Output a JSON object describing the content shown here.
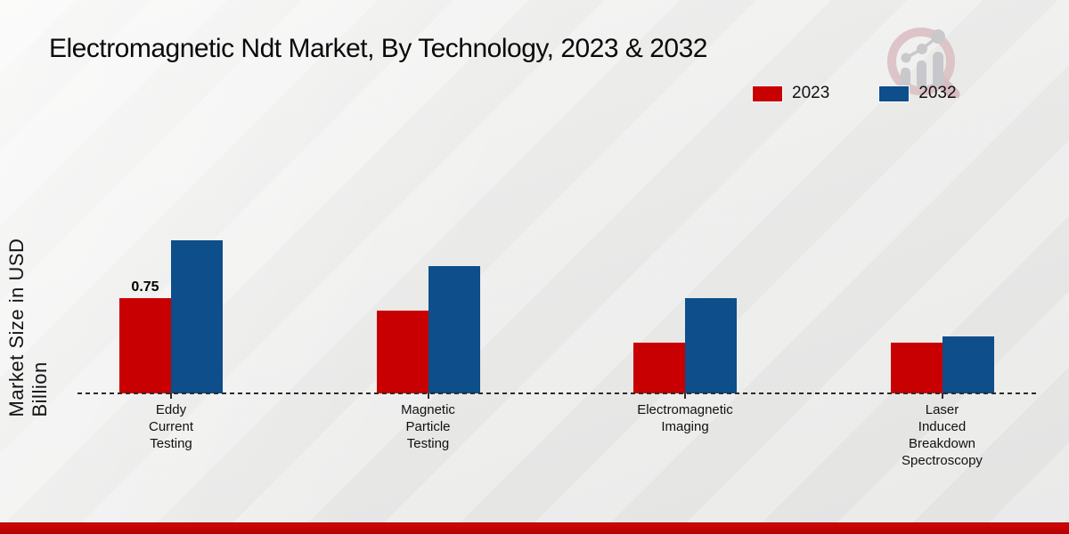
{
  "title": "Electromagnetic Ndt Market, By Technology, 2023 & 2032",
  "chart_data": {
    "type": "bar",
    "title": "Electromagnetic Ndt Market, By Technology, 2023 & 2032",
    "categories": [
      "Eddy\nCurrent\nTesting",
      "Magnetic\nParticle\nTesting",
      "Electromagnetic\nImaging",
      "Laser\nInduced\nBreakdown\nSpectroscopy"
    ],
    "series": [
      {
        "name": "2023",
        "color": "#c80001",
        "values": [
          0.75,
          0.65,
          0.4,
          0.4
        ]
      },
      {
        "name": "2032",
        "color": "#0d4e8b",
        "values": [
          1.2,
          1.0,
          0.75,
          0.45
        ]
      }
    ],
    "value_label": {
      "series_index": 0,
      "category_index": 0,
      "text": "0.75"
    },
    "xlabel": "",
    "ylabel": "Market Size in USD Billion",
    "ylim": [
      0,
      1.4
    ],
    "grid": false,
    "baseline_style": "dashed",
    "legend_position": "top-right"
  },
  "branding": {
    "logo_name": "magnifier-growth-chart-watermark",
    "bottom_band_color": "#c00404"
  }
}
